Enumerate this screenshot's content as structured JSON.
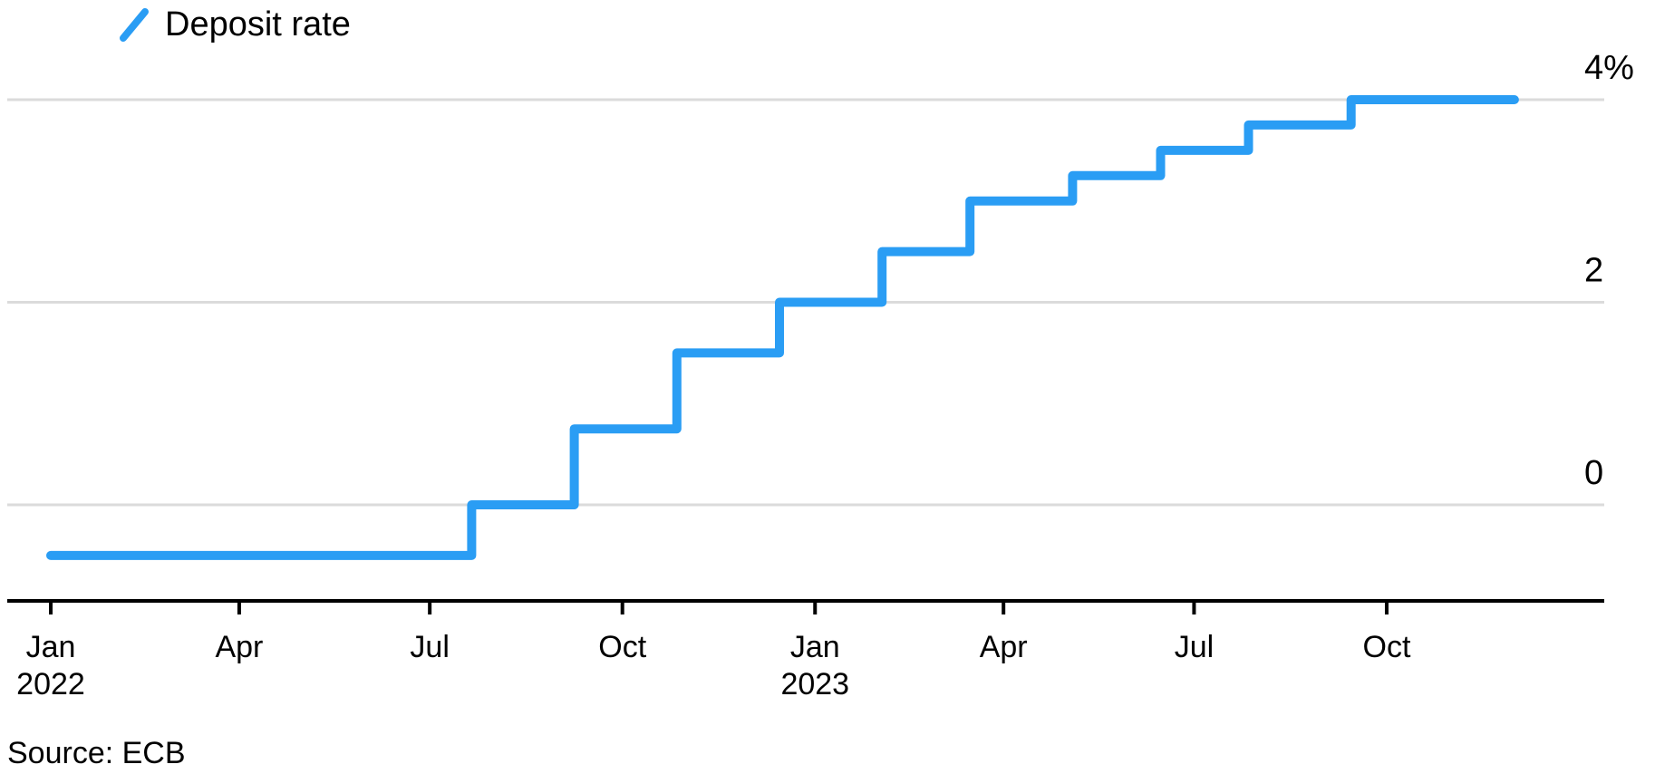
{
  "page": {
    "background": "#FFFFFF"
  },
  "source": {
    "text": "Source: ECB"
  },
  "chart_data": {
    "type": "line",
    "line_style": "step-after",
    "title": "",
    "subtitle": "",
    "legend_position": "top-left",
    "series": [
      {
        "name": "Deposit rate",
        "color": "#2A9DF4",
        "points": [
          {
            "date": "2022-01-01",
            "rate": -0.5
          },
          {
            "date": "2022-07-21",
            "rate": 0.0
          },
          {
            "date": "2022-09-08",
            "rate": 0.75
          },
          {
            "date": "2022-10-27",
            "rate": 1.5
          },
          {
            "date": "2022-12-15",
            "rate": 2.0
          },
          {
            "date": "2023-02-02",
            "rate": 2.5
          },
          {
            "date": "2023-03-16",
            "rate": 3.0
          },
          {
            "date": "2023-05-04",
            "rate": 3.25
          },
          {
            "date": "2023-06-15",
            "rate": 3.5
          },
          {
            "date": "2023-07-27",
            "rate": 3.75
          },
          {
            "date": "2023-09-14",
            "rate": 4.0
          }
        ],
        "end_date": "2023-12-01"
      }
    ],
    "x_axis": {
      "ticks": [
        {
          "date": "2022-01-01",
          "label": "Jan",
          "year": "2022"
        },
        {
          "date": "2022-04-01",
          "label": "Apr",
          "year": ""
        },
        {
          "date": "2022-07-01",
          "label": "Jul",
          "year": ""
        },
        {
          "date": "2022-10-01",
          "label": "Oct",
          "year": ""
        },
        {
          "date": "2023-01-01",
          "label": "Jan",
          "year": "2023"
        },
        {
          "date": "2023-04-01",
          "label": "Apr",
          "year": ""
        },
        {
          "date": "2023-07-01",
          "label": "Jul",
          "year": ""
        },
        {
          "date": "2023-10-01",
          "label": "Oct",
          "year": ""
        }
      ],
      "range": [
        "2021-12-11",
        "2024-01-13"
      ]
    },
    "y_axis": {
      "unit": "%",
      "labels_side": "right",
      "grid": true,
      "range": [
        -0.95,
        4.4
      ],
      "ticks": [
        {
          "value": 4,
          "label": "4%"
        },
        {
          "value": 2,
          "label": "2"
        },
        {
          "value": 0,
          "label": "0"
        }
      ]
    },
    "colors": {
      "line": "#2A9DF4",
      "grid": "#DBDBDB",
      "axis": "#000000",
      "text": "#000000"
    },
    "source_note": "Source: ECB"
  }
}
